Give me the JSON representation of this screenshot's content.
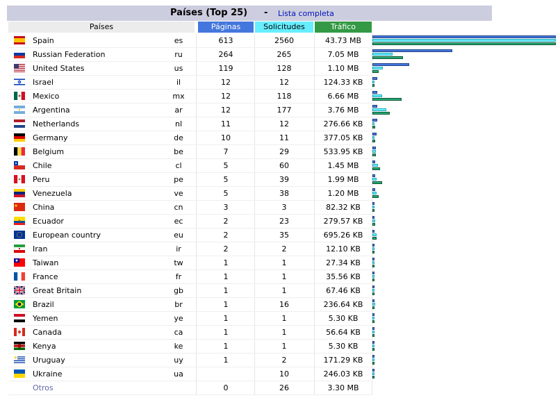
{
  "title": "Países (Top 25)",
  "separator": "-",
  "full_list_link": "Lista completa",
  "headers": {
    "name": "Países",
    "pages": "Páginas",
    "hits": "Solicitudes",
    "bandwidth": "Tráfico"
  },
  "colors": {
    "pages": "#4477dd",
    "hits": "#66eeff",
    "bandwidth": "#339944",
    "title_bar": "#cccdde"
  },
  "rows": [
    {
      "flag": "es-flag",
      "name": "Spain",
      "code": "es",
      "pages": "613",
      "hits": "2560",
      "bw": "43.73 MB",
      "p": 613,
      "h": 2560,
      "b": 43.73
    },
    {
      "flag": "ru-flag",
      "name": "Russian Federation",
      "code": "ru",
      "pages": "264",
      "hits": "265",
      "bw": "7.05 MB",
      "p": 264,
      "h": 265,
      "b": 7.05
    },
    {
      "flag": "us-flag",
      "name": "United States",
      "code": "us",
      "pages": "119",
      "hits": "128",
      "bw": "1.10 MB",
      "p": 119,
      "h": 128,
      "b": 1.1
    },
    {
      "flag": "il-flag",
      "name": "Israel",
      "code": "il",
      "pages": "12",
      "hits": "12",
      "bw": "124.33 KB",
      "p": 12,
      "h": 12,
      "b": 0.1214
    },
    {
      "flag": "mx-flag",
      "name": "Mexico",
      "code": "mx",
      "pages": "12",
      "hits": "118",
      "bw": "6.66 MB",
      "p": 12,
      "h": 118,
      "b": 6.66
    },
    {
      "flag": "ar-flag",
      "name": "Argentina",
      "code": "ar",
      "pages": "12",
      "hits": "177",
      "bw": "3.76 MB",
      "p": 12,
      "h": 177,
      "b": 3.76
    },
    {
      "flag": "nl-flag",
      "name": "Netherlands",
      "code": "nl",
      "pages": "11",
      "hits": "12",
      "bw": "276.66 KB",
      "p": 11,
      "h": 12,
      "b": 0.2702
    },
    {
      "flag": "de-flag",
      "name": "Germany",
      "code": "de",
      "pages": "10",
      "hits": "11",
      "bw": "377.05 KB",
      "p": 10,
      "h": 11,
      "b": 0.3682
    },
    {
      "flag": "be-flag",
      "name": "Belgium",
      "code": "be",
      "pages": "7",
      "hits": "29",
      "bw": "533.95 KB",
      "p": 7,
      "h": 29,
      "b": 0.5214
    },
    {
      "flag": "cl-flag",
      "name": "Chile",
      "code": "cl",
      "pages": "5",
      "hits": "60",
      "bw": "1.45 MB",
      "p": 5,
      "h": 60,
      "b": 1.45
    },
    {
      "flag": "pe-flag",
      "name": "Peru",
      "code": "pe",
      "pages": "5",
      "hits": "39",
      "bw": "1.99 MB",
      "p": 5,
      "h": 39,
      "b": 1.99
    },
    {
      "flag": "ve-flag",
      "name": "Venezuela",
      "code": "ve",
      "pages": "5",
      "hits": "38",
      "bw": "1.20 MB",
      "p": 5,
      "h": 38,
      "b": 1.2
    },
    {
      "flag": "cn-flag",
      "name": "China",
      "code": "cn",
      "pages": "3",
      "hits": "3",
      "bw": "82.32 KB",
      "p": 3,
      "h": 3,
      "b": 0.0804
    },
    {
      "flag": "ec-flag",
      "name": "Ecuador",
      "code": "ec",
      "pages": "2",
      "hits": "23",
      "bw": "279.57 KB",
      "p": 2,
      "h": 23,
      "b": 0.273
    },
    {
      "flag": "eu-flag",
      "name": "European country",
      "code": "eu",
      "pages": "2",
      "hits": "35",
      "bw": "695.26 KB",
      "p": 2,
      "h": 35,
      "b": 0.679
    },
    {
      "flag": "ir-flag",
      "name": "Iran",
      "code": "ir",
      "pages": "2",
      "hits": "2",
      "bw": "12.10 KB",
      "p": 2,
      "h": 2,
      "b": 0.0118
    },
    {
      "flag": "tw-flag",
      "name": "Taiwan",
      "code": "tw",
      "pages": "1",
      "hits": "1",
      "bw": "27.34 KB",
      "p": 1,
      "h": 1,
      "b": 0.0267
    },
    {
      "flag": "fr-flag",
      "name": "France",
      "code": "fr",
      "pages": "1",
      "hits": "1",
      "bw": "35.56 KB",
      "p": 1,
      "h": 1,
      "b": 0.0347
    },
    {
      "flag": "gb-flag",
      "name": "Great Britain",
      "code": "gb",
      "pages": "1",
      "hits": "1",
      "bw": "67.46 KB",
      "p": 1,
      "h": 1,
      "b": 0.0659
    },
    {
      "flag": "br-flag",
      "name": "Brazil",
      "code": "br",
      "pages": "1",
      "hits": "16",
      "bw": "236.64 KB",
      "p": 1,
      "h": 16,
      "b": 0.231
    },
    {
      "flag": "ye-flag",
      "name": "Yemen",
      "code": "ye",
      "pages": "1",
      "hits": "1",
      "bw": "5.30 KB",
      "p": 1,
      "h": 1,
      "b": 0.0052
    },
    {
      "flag": "ca-flag",
      "name": "Canada",
      "code": "ca",
      "pages": "1",
      "hits": "1",
      "bw": "56.64 KB",
      "p": 1,
      "h": 1,
      "b": 0.0553
    },
    {
      "flag": "ke-flag",
      "name": "Kenya",
      "code": "ke",
      "pages": "1",
      "hits": "1",
      "bw": "5.30 KB",
      "p": 1,
      "h": 1,
      "b": 0.0052
    },
    {
      "flag": "uy-flag",
      "name": "Uruguay",
      "code": "uy",
      "pages": "1",
      "hits": "2",
      "bw": "171.29 KB",
      "p": 1,
      "h": 2,
      "b": 0.1673
    },
    {
      "flag": "ua-flag",
      "name": "Ukraine",
      "code": "ua",
      "pages": "",
      "hits": "10",
      "bw": "246.03 KB",
      "p": 0,
      "h": 10,
      "b": 0.2403
    }
  ],
  "other": {
    "name": "Otros",
    "pages": "0",
    "hits": "26",
    "bw": "3.30 MB",
    "p": 0,
    "h": 26,
    "b": 3.3
  },
  "max": {
    "p": 613,
    "h": 2560,
    "b": 43.73
  }
}
